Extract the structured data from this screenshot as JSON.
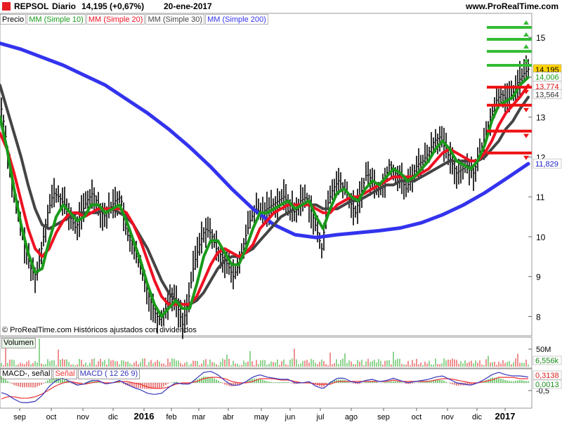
{
  "header": {
    "symbol": "REPSOL",
    "period": "Diario",
    "quote": "14,195 (+0,67%)",
    "date": "20-ene-2017",
    "site": "www.ProRealTime.com"
  },
  "legend": {
    "price_label": "Precio",
    "ma10": "MM (Simple 10)",
    "ma20": "MM (Simple 20)",
    "ma30": "MM (Simple 30)",
    "ma200": "MM (Simple 200)"
  },
  "copyright": "© ProRealTime.com  Históricos ajustados con dividendos",
  "volume_label": "Volumen",
  "macd_legend": {
    "a": "MACD-, señal",
    "b": "Señal",
    "c": "MACD ( 12 26 9)"
  },
  "colors": {
    "ma10": "#1a9a1a",
    "ma20": "#ee1122",
    "ma30": "#444444",
    "ma200": "#3333ee",
    "price": "#000000",
    "volume_up": "#22aa22",
    "volume_down": "#dd2222",
    "resistance": "#33bb33",
    "support": "#ee1111"
  },
  "chart_data": {
    "type": "line",
    "price_axis": {
      "ticks": [
        "15",
        "14",
        "13",
        "12",
        "11",
        "10",
        "9",
        "8"
      ],
      "range": [
        7.55,
        15.55
      ]
    },
    "x_axis": [
      "sep",
      "oct",
      "nov",
      "dic",
      "2016",
      "feb",
      "mar",
      "abr",
      "may",
      "jun",
      "jul",
      "ago",
      "sep",
      "oct",
      "nov",
      "dic",
      "2017"
    ],
    "price_labels": {
      "close": "14,195",
      "ma10": "14,006",
      "ma20": "13,774",
      "ma30": "13,564",
      "ma200": "11,829"
    },
    "volume_axis": {
      "label": "50M",
      "last": "6,556k"
    },
    "macd_axis": {
      "tick": "-0,5",
      "macd": "0,3138",
      "signal": "0,0013"
    },
    "price_series": [
      [
        0,
        13.4
      ],
      [
        5,
        12.9
      ],
      [
        12,
        12.0
      ],
      [
        20,
        11.0
      ],
      [
        28,
        10.4
      ],
      [
        36,
        9.7
      ],
      [
        44,
        9.2
      ],
      [
        52,
        9.0
      ],
      [
        60,
        9.8
      ],
      [
        68,
        10.6
      ],
      [
        76,
        11.1
      ],
      [
        84,
        11.0
      ],
      [
        92,
        10.8
      ],
      [
        100,
        10.5
      ],
      [
        108,
        10.2
      ],
      [
        116,
        10.6
      ],
      [
        124,
        10.9
      ],
      [
        132,
        11.1
      ],
      [
        140,
        10.8
      ],
      [
        148,
        10.5
      ],
      [
        156,
        10.7
      ],
      [
        164,
        10.9
      ],
      [
        172,
        11.0
      ],
      [
        180,
        10.1
      ],
      [
        188,
        9.8
      ],
      [
        196,
        9.4
      ],
      [
        204,
        9.0
      ],
      [
        212,
        8.5
      ],
      [
        220,
        8.1
      ],
      [
        228,
        7.9
      ],
      [
        236,
        8.2
      ],
      [
        244,
        8.6
      ],
      [
        252,
        8.3
      ],
      [
        260,
        7.8
      ],
      [
        268,
        8.4
      ],
      [
        276,
        9.3
      ],
      [
        284,
        9.8
      ],
      [
        292,
        10.2
      ],
      [
        300,
        10.1
      ],
      [
        308,
        9.7
      ],
      [
        316,
        9.5
      ],
      [
        324,
        9.3
      ],
      [
        332,
        9.0
      ],
      [
        340,
        9.3
      ],
      [
        348,
        9.9
      ],
      [
        356,
        10.4
      ],
      [
        364,
        10.7
      ],
      [
        372,
        10.6
      ],
      [
        380,
        10.7
      ],
      [
        388,
        10.8
      ],
      [
        396,
        10.9
      ],
      [
        404,
        11.0
      ],
      [
        412,
        10.8
      ],
      [
        420,
        10.6
      ],
      [
        428,
        10.9
      ],
      [
        436,
        11.0
      ],
      [
        444,
        10.6
      ],
      [
        452,
        10.1
      ],
      [
        458,
        9.7
      ],
      [
        466,
        10.8
      ],
      [
        474,
        11.2
      ],
      [
        482,
        11.4
      ],
      [
        490,
        11.2
      ],
      [
        498,
        10.9
      ],
      [
        506,
        10.6
      ],
      [
        514,
        11.1
      ],
      [
        522,
        11.6
      ],
      [
        530,
        11.4
      ],
      [
        538,
        11.2
      ],
      [
        546,
        11.3
      ],
      [
        554,
        11.8
      ],
      [
        562,
        11.6
      ],
      [
        570,
        11.5
      ],
      [
        578,
        11.2
      ],
      [
        586,
        11.5
      ],
      [
        594,
        11.8
      ],
      [
        602,
        11.9
      ],
      [
        610,
        12.1
      ],
      [
        618,
        12.4
      ],
      [
        626,
        12.5
      ],
      [
        634,
        12.2
      ],
      [
        642,
        11.9
      ],
      [
        650,
        11.6
      ],
      [
        658,
        11.7
      ],
      [
        666,
        11.8
      ],
      [
        674,
        11.6
      ],
      [
        682,
        12.0
      ],
      [
        690,
        12.4
      ],
      [
        698,
        13.0
      ],
      [
        706,
        13.4
      ],
      [
        714,
        13.6
      ],
      [
        722,
        13.4
      ],
      [
        730,
        13.6
      ],
      [
        738,
        13.9
      ],
      [
        746,
        14.1
      ],
      [
        752,
        14.2
      ]
    ],
    "ma10": [
      [
        0,
        13.0
      ],
      [
        10,
        12.2
      ],
      [
        20,
        11.2
      ],
      [
        30,
        10.3
      ],
      [
        40,
        9.6
      ],
      [
        50,
        9.1
      ],
      [
        60,
        9.2
      ],
      [
        70,
        9.9
      ],
      [
        80,
        10.5
      ],
      [
        90,
        10.8
      ],
      [
        100,
        10.6
      ],
      [
        110,
        10.4
      ],
      [
        120,
        10.5
      ],
      [
        130,
        10.8
      ],
      [
        140,
        10.8
      ],
      [
        150,
        10.6
      ],
      [
        160,
        10.7
      ],
      [
        170,
        10.8
      ],
      [
        180,
        10.4
      ],
      [
        190,
        9.9
      ],
      [
        200,
        9.4
      ],
      [
        210,
        8.8
      ],
      [
        220,
        8.3
      ],
      [
        230,
        8.0
      ],
      [
        240,
        8.2
      ],
      [
        250,
        8.4
      ],
      [
        260,
        8.2
      ],
      [
        270,
        8.2
      ],
      [
        280,
        8.8
      ],
      [
        290,
        9.5
      ],
      [
        300,
        9.9
      ],
      [
        310,
        9.9
      ],
      [
        320,
        9.6
      ],
      [
        330,
        9.3
      ],
      [
        340,
        9.3
      ],
      [
        350,
        9.7
      ],
      [
        360,
        10.2
      ],
      [
        370,
        10.6
      ],
      [
        380,
        10.6
      ],
      [
        390,
        10.7
      ],
      [
        400,
        10.8
      ],
      [
        410,
        10.9
      ],
      [
        420,
        10.7
      ],
      [
        430,
        10.8
      ],
      [
        440,
        10.9
      ],
      [
        450,
        10.5
      ],
      [
        460,
        10.2
      ],
      [
        470,
        10.7
      ],
      [
        480,
        11.1
      ],
      [
        490,
        11.2
      ],
      [
        500,
        11.0
      ],
      [
        510,
        10.9
      ],
      [
        520,
        11.2
      ],
      [
        530,
        11.4
      ],
      [
        540,
        11.3
      ],
      [
        550,
        11.5
      ],
      [
        560,
        11.7
      ],
      [
        570,
        11.6
      ],
      [
        580,
        11.4
      ],
      [
        590,
        11.5
      ],
      [
        600,
        11.7
      ],
      [
        610,
        11.9
      ],
      [
        620,
        12.2
      ],
      [
        630,
        12.4
      ],
      [
        640,
        12.2
      ],
      [
        650,
        11.9
      ],
      [
        660,
        11.8
      ],
      [
        670,
        11.7
      ],
      [
        680,
        11.9
      ],
      [
        690,
        12.3
      ],
      [
        700,
        12.9
      ],
      [
        710,
        13.3
      ],
      [
        720,
        13.4
      ],
      [
        730,
        13.5
      ],
      [
        740,
        13.8
      ],
      [
        752,
        14.0
      ]
    ],
    "ma20": [
      [
        0,
        12.6
      ],
      [
        10,
        12.2
      ],
      [
        20,
        11.6
      ],
      [
        30,
        10.9
      ],
      [
        40,
        10.2
      ],
      [
        50,
        9.7
      ],
      [
        60,
        9.5
      ],
      [
        70,
        9.7
      ],
      [
        80,
        10.1
      ],
      [
        90,
        10.4
      ],
      [
        100,
        10.6
      ],
      [
        110,
        10.6
      ],
      [
        120,
        10.5
      ],
      [
        130,
        10.6
      ],
      [
        140,
        10.7
      ],
      [
        150,
        10.7
      ],
      [
        160,
        10.7
      ],
      [
        170,
        10.7
      ],
      [
        180,
        10.6
      ],
      [
        190,
        10.3
      ],
      [
        200,
        9.9
      ],
      [
        210,
        9.4
      ],
      [
        220,
        8.9
      ],
      [
        230,
        8.5
      ],
      [
        240,
        8.3
      ],
      [
        250,
        8.3
      ],
      [
        260,
        8.3
      ],
      [
        270,
        8.3
      ],
      [
        280,
        8.5
      ],
      [
        290,
        8.9
      ],
      [
        300,
        9.3
      ],
      [
        310,
        9.6
      ],
      [
        320,
        9.7
      ],
      [
        330,
        9.6
      ],
      [
        340,
        9.5
      ],
      [
        350,
        9.6
      ],
      [
        360,
        9.8
      ],
      [
        370,
        10.2
      ],
      [
        380,
        10.4
      ],
      [
        390,
        10.6
      ],
      [
        400,
        10.7
      ],
      [
        410,
        10.8
      ],
      [
        420,
        10.8
      ],
      [
        430,
        10.8
      ],
      [
        440,
        10.8
      ],
      [
        450,
        10.7
      ],
      [
        460,
        10.6
      ],
      [
        470,
        10.6
      ],
      [
        480,
        10.8
      ],
      [
        490,
        10.9
      ],
      [
        500,
        11.0
      ],
      [
        510,
        11.0
      ],
      [
        520,
        11.1
      ],
      [
        530,
        11.2
      ],
      [
        540,
        11.3
      ],
      [
        550,
        11.4
      ],
      [
        560,
        11.5
      ],
      [
        570,
        11.5
      ],
      [
        580,
        11.5
      ],
      [
        590,
        11.5
      ],
      [
        600,
        11.6
      ],
      [
        610,
        11.7
      ],
      [
        620,
        11.9
      ],
      [
        630,
        12.1
      ],
      [
        640,
        12.2
      ],
      [
        650,
        12.1
      ],
      [
        660,
        12.0
      ],
      [
        670,
        11.9
      ],
      [
        680,
        11.9
      ],
      [
        690,
        12.1
      ],
      [
        700,
        12.4
      ],
      [
        710,
        12.8
      ],
      [
        720,
        13.1
      ],
      [
        730,
        13.3
      ],
      [
        740,
        13.5
      ],
      [
        752,
        13.8
      ]
    ],
    "ma30": [
      [
        0,
        13.8
      ],
      [
        10,
        13.2
      ],
      [
        20,
        12.6
      ],
      [
        30,
        12.0
      ],
      [
        40,
        11.3
      ],
      [
        50,
        10.7
      ],
      [
        60,
        10.3
      ],
      [
        70,
        10.2
      ],
      [
        80,
        10.3
      ],
      [
        90,
        10.4
      ],
      [
        100,
        10.5
      ],
      [
        110,
        10.6
      ],
      [
        120,
        10.6
      ],
      [
        130,
        10.6
      ],
      [
        140,
        10.6
      ],
      [
        150,
        10.7
      ],
      [
        160,
        10.7
      ],
      [
        170,
        10.6
      ],
      [
        180,
        10.5
      ],
      [
        190,
        10.3
      ],
      [
        200,
        10.0
      ],
      [
        210,
        9.7
      ],
      [
        220,
        9.3
      ],
      [
        230,
        8.9
      ],
      [
        240,
        8.6
      ],
      [
        250,
        8.4
      ],
      [
        260,
        8.3
      ],
      [
        270,
        8.3
      ],
      [
        280,
        8.4
      ],
      [
        290,
        8.6
      ],
      [
        300,
        8.9
      ],
      [
        310,
        9.2
      ],
      [
        320,
        9.4
      ],
      [
        330,
        9.5
      ],
      [
        340,
        9.5
      ],
      [
        350,
        9.6
      ],
      [
        360,
        9.7
      ],
      [
        370,
        9.9
      ],
      [
        380,
        10.1
      ],
      [
        390,
        10.3
      ],
      [
        400,
        10.5
      ],
      [
        410,
        10.6
      ],
      [
        420,
        10.7
      ],
      [
        430,
        10.8
      ],
      [
        440,
        10.8
      ],
      [
        450,
        10.8
      ],
      [
        460,
        10.7
      ],
      [
        470,
        10.7
      ],
      [
        480,
        10.7
      ],
      [
        490,
        10.8
      ],
      [
        500,
        10.9
      ],
      [
        510,
        10.9
      ],
      [
        520,
        11.0
      ],
      [
        530,
        11.1
      ],
      [
        540,
        11.2
      ],
      [
        550,
        11.3
      ],
      [
        560,
        11.3
      ],
      [
        570,
        11.4
      ],
      [
        580,
        11.4
      ],
      [
        590,
        11.4
      ],
      [
        600,
        11.5
      ],
      [
        610,
        11.6
      ],
      [
        620,
        11.7
      ],
      [
        630,
        11.8
      ],
      [
        640,
        11.9
      ],
      [
        650,
        11.9
      ],
      [
        660,
        11.9
      ],
      [
        670,
        11.9
      ],
      [
        680,
        11.9
      ],
      [
        690,
        12.0
      ],
      [
        700,
        12.2
      ],
      [
        710,
        12.4
      ],
      [
        720,
        12.7
      ],
      [
        730,
        12.9
      ],
      [
        740,
        13.2
      ],
      [
        752,
        13.5
      ]
    ],
    "ma200": [
      [
        0,
        14.85
      ],
      [
        30,
        14.7
      ],
      [
        60,
        14.5
      ],
      [
        90,
        14.3
      ],
      [
        120,
        14.05
      ],
      [
        150,
        13.8
      ],
      [
        180,
        13.45
      ],
      [
        210,
        13.1
      ],
      [
        240,
        12.7
      ],
      [
        270,
        12.25
      ],
      [
        300,
        11.75
      ],
      [
        330,
        11.2
      ],
      [
        360,
        10.7
      ],
      [
        390,
        10.3
      ],
      [
        420,
        10.05
      ],
      [
        450,
        9.98
      ],
      [
        480,
        10.05
      ],
      [
        510,
        10.1
      ],
      [
        540,
        10.15
      ],
      [
        570,
        10.22
      ],
      [
        600,
        10.35
      ],
      [
        630,
        10.55
      ],
      [
        660,
        10.8
      ],
      [
        690,
        11.1
      ],
      [
        720,
        11.45
      ],
      [
        752,
        11.83
      ]
    ],
    "resistance_levels": [
      15.25,
      14.95,
      14.65,
      14.3
    ],
    "support_levels": [
      13.75,
      13.3,
      12.65,
      12.1
    ]
  }
}
